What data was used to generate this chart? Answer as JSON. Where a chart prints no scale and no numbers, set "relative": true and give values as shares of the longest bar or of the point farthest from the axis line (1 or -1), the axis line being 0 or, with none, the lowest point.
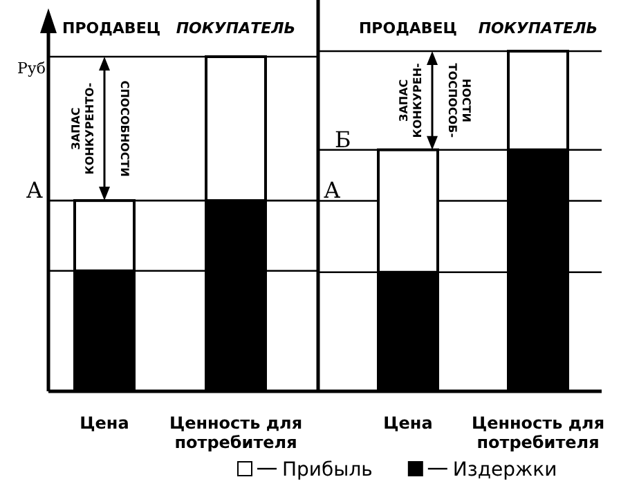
{
  "chart_data": [
    {
      "type": "bar",
      "stacked": true,
      "relative": true,
      "ylabel": "Руб",
      "categories": [
        "Цена",
        "Ценность для потребителя"
      ],
      "series": [
        {
          "color": "#000000",
          "values": [
            0.36,
            0.57
          ]
        },
        {
          "color": "#ffffff",
          "values": [
            0.21,
            0.43
          ]
        }
      ],
      "ref_lines": [
        {
          "axis": "y",
          "value": 0.57,
          "label": "А"
        },
        {
          "axis": "y",
          "value": 1,
          "label": null
        },
        {
          "axis": "y",
          "value": 0.36,
          "label": null
        }
      ],
      "annotations": [
        "ПРОДАВЕЦ",
        "ПОКУПАТЕЛЬ",
        "ЗАПАС КОНКУРЕНТО- СПОСОБНОСТИ"
      ],
      "legend": false
    },
    {
      "type": "bar",
      "stacked": true,
      "relative": true,
      "categories": [
        "Цена",
        "Ценность для потребителя"
      ],
      "series": [
        {
          "name": "Издержки",
          "color": "#000000",
          "values": [
            0.35,
            0.71
          ]
        },
        {
          "name": "Прибыль",
          "color": "#ffffff",
          "values": [
            0.36,
            0.29
          ]
        }
      ],
      "ref_lines": [
        {
          "axis": "y",
          "value": 0.71,
          "label": "Б"
        },
        {
          "axis": "y",
          "value": 0.56,
          "label": "А"
        },
        {
          "axis": "y",
          "value": 1,
          "label": null
        },
        {
          "axis": "y",
          "value": 0.35,
          "label": null
        }
      ],
      "annotations": [
        "ПРОДАВЕЦ",
        "ПОКУПАТЕЛЬ",
        "ЗАПАС КОНКУРЕН- ТОСПОСОБ- НОСТИ"
      ],
      "legend": "bottom"
    }
  ]
}
